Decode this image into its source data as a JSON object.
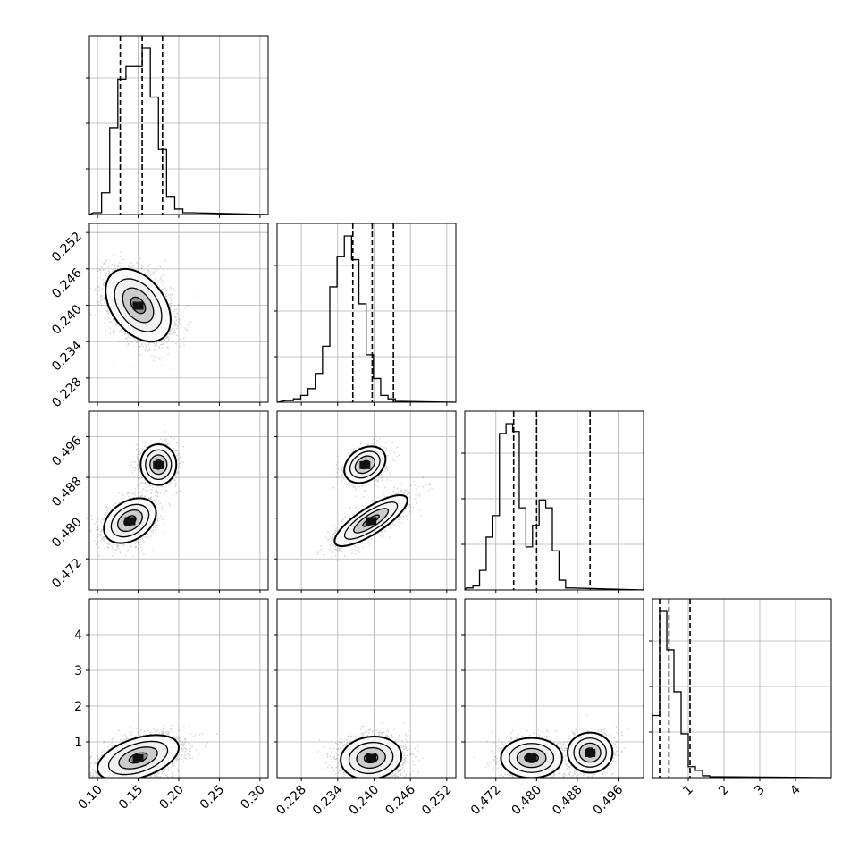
{
  "chart_data": {
    "type": "corner",
    "grid": true,
    "parameters": [
      {
        "ticks": [
          0.1,
          0.15,
          0.2,
          0.25,
          0.3
        ],
        "tick_labels": [
          "0.10",
          "0.15",
          "0.20",
          "0.25",
          "0.30"
        ],
        "range": [
          0.09,
          0.31
        ]
      },
      {
        "ticks": [
          0.228,
          0.234,
          0.24,
          0.246,
          0.252
        ],
        "tick_labels": [
          "0.228",
          "0.234",
          "0.240",
          "0.246",
          "0.252"
        ],
        "range": [
          0.224,
          0.2535
        ]
      },
      {
        "ticks": [
          0.472,
          0.48,
          0.488,
          0.496
        ],
        "tick_labels": [
          "0.472",
          "0.480",
          "0.488",
          "0.496"
        ],
        "range": [
          0.4659,
          0.501
        ]
      },
      {
        "ticks": [
          1,
          2,
          3,
          4
        ],
        "tick_labels": [
          "1",
          "2",
          "3",
          "4"
        ],
        "range": [
          0.0,
          5.0
        ]
      }
    ],
    "quantiles": [
      [
        0.128,
        0.155,
        0.18
      ],
      [
        0.2365,
        0.2397,
        0.2432
      ],
      [
        0.4755,
        0.48,
        0.4905
      ],
      [
        0.2,
        0.46,
        1.05
      ]
    ],
    "histograms": [
      {
        "bin_start": 0.095,
        "bin_width": 0.01,
        "counts": [
          0.01,
          0.12,
          0.48,
          0.75,
          0.82,
          0.82,
          0.92,
          0.65,
          0.36,
          0.1,
          0.03,
          0.01
        ]
      },
      {
        "bin_start": 0.2255,
        "bin_width": 0.0012,
        "counts": [
          0.01,
          0.02,
          0.04,
          0.08,
          0.17,
          0.33,
          0.68,
          0.86,
          0.98,
          0.84,
          0.58,
          0.28,
          0.14,
          0.04,
          0.02,
          0.005
        ]
      },
      {
        "bin_start": 0.4662,
        "bin_width": 0.0013,
        "counts": [
          0.01,
          0.02,
          0.1,
          0.27,
          0.38,
          0.8,
          0.85,
          0.81,
          0.42,
          0.22,
          0.33,
          0.46,
          0.42,
          0.2,
          0.05,
          0.01
        ]
      },
      {
        "bin_start": 0.0,
        "bin_width": 0.2,
        "counts": [
          0.34,
          0.91,
          0.7,
          0.47,
          0.24,
          0.06,
          0.04,
          0.01,
          0.005
        ]
      }
    ],
    "pairs": [
      {
        "row": 1,
        "col": 0,
        "modes": [
          {
            "mean": [
              0.15,
              0.24
            ],
            "sd": [
              0.02,
              0.003
            ],
            "rho": -0.4,
            "w": 1
          }
        ]
      },
      {
        "row": 2,
        "col": 0,
        "modes": [
          {
            "mean": [
              0.14,
              0.4795
            ],
            "sd": [
              0.016,
              0.0022
            ],
            "rho": 0.35,
            "w": 0.62
          },
          {
            "mean": [
              0.175,
              0.4905
            ],
            "sd": [
              0.011,
              0.002
            ],
            "rho": 0.0,
            "w": 0.38
          }
        ]
      },
      {
        "row": 2,
        "col": 1,
        "modes": [
          {
            "mean": [
              0.2395,
              0.4795
            ],
            "sd": [
              0.003,
              0.0025
            ],
            "rho": 0.8,
            "w": 0.62
          },
          {
            "mean": [
              0.2385,
              0.4905
            ],
            "sd": [
              0.0017,
              0.0018
            ],
            "rho": 0.3,
            "w": 0.38
          }
        ]
      },
      {
        "row": 3,
        "col": 0,
        "modes": [
          {
            "mean": [
              0.15,
              0.55
            ],
            "sd": [
              0.025,
              0.32
            ],
            "rho": 0.45,
            "w": 1
          }
        ]
      },
      {
        "row": 3,
        "col": 1,
        "modes": [
          {
            "mean": [
              0.2395,
              0.55
            ],
            "sd": [
              0.0025,
              0.3
            ],
            "rho": 0.1,
            "w": 1
          }
        ]
      },
      {
        "row": 3,
        "col": 2,
        "modes": [
          {
            "mean": [
              0.479,
              0.55
            ],
            "sd": [
              0.003,
              0.28
            ],
            "rho": 0.0,
            "w": 0.62
          },
          {
            "mean": [
              0.4905,
              0.7
            ],
            "sd": [
              0.0022,
              0.28
            ],
            "rho": 0.0,
            "w": 0.38
          }
        ]
      }
    ]
  }
}
